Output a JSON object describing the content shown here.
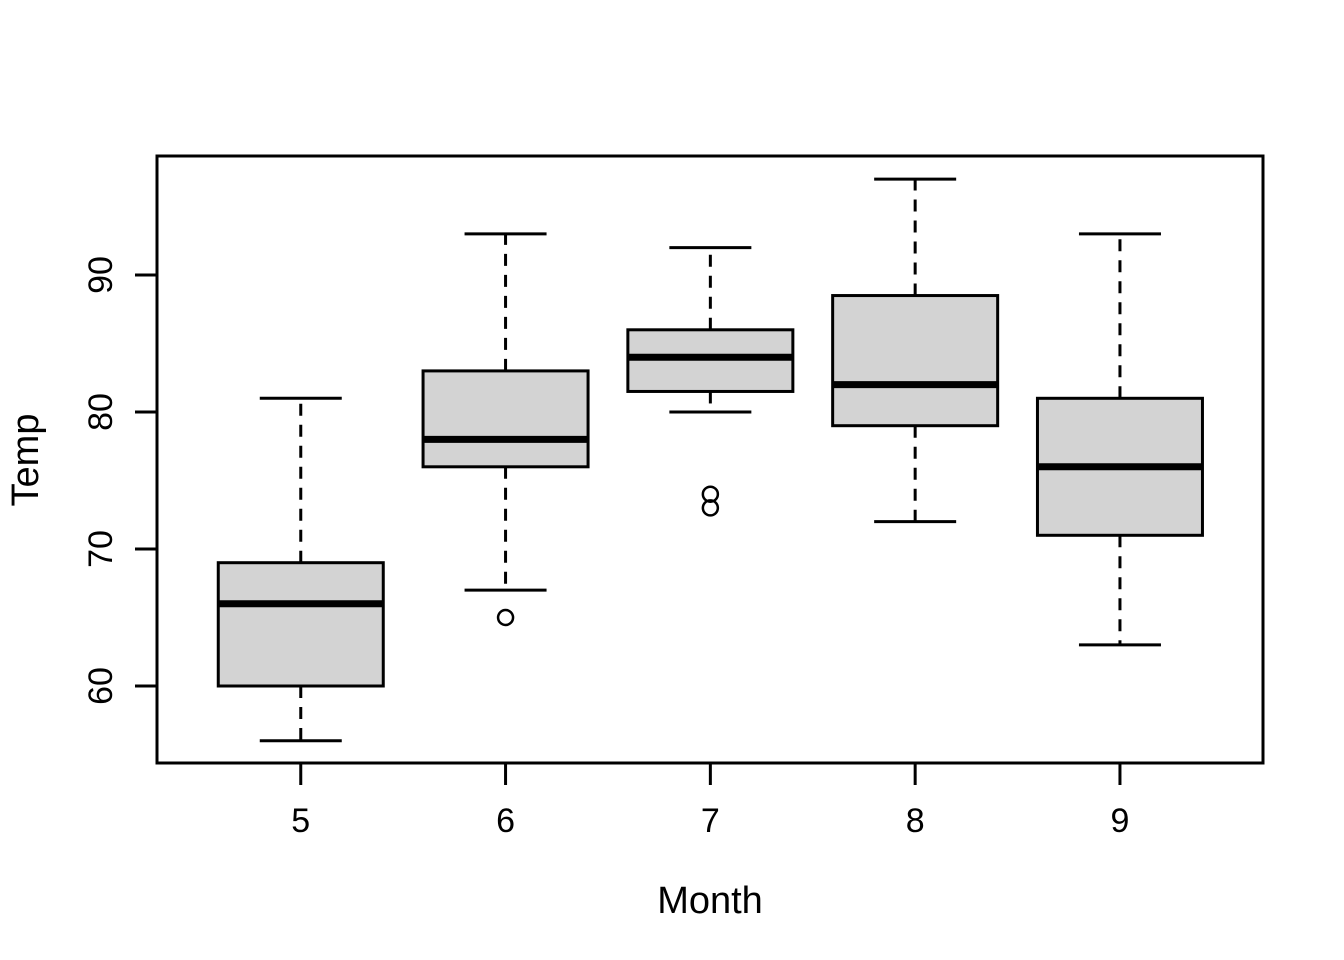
{
  "chart_data": {
    "type": "boxplot",
    "title": "",
    "xlabel": "Month",
    "ylabel": "Temp",
    "categories": [
      "5",
      "6",
      "7",
      "8",
      "9"
    ],
    "y_ticks": [
      60,
      70,
      80,
      90
    ],
    "ylim": [
      54.4,
      98.7
    ],
    "xlim": [
      0.3,
      5.7
    ],
    "grid": false,
    "legend": "none",
    "colors": {
      "box_fill": "#d3d3d3",
      "line": "#000000",
      "background": "#ffffff"
    },
    "boxes": [
      {
        "category": "5",
        "whisker_low": 56,
        "q1": 60,
        "median": 66,
        "q3": 69,
        "whisker_high": 81,
        "outliers": []
      },
      {
        "category": "6",
        "whisker_low": 67,
        "q1": 76,
        "median": 78,
        "q3": 83,
        "whisker_high": 93,
        "outliers": [
          65
        ]
      },
      {
        "category": "7",
        "whisker_low": 80,
        "q1": 81.5,
        "median": 84,
        "q3": 86,
        "whisker_high": 92,
        "outliers": [
          74,
          73
        ]
      },
      {
        "category": "8",
        "whisker_low": 72,
        "q1": 79,
        "median": 82,
        "q3": 88.5,
        "whisker_high": 97,
        "outliers": []
      },
      {
        "category": "9",
        "whisker_low": 63,
        "q1": 71,
        "median": 76,
        "q3": 81,
        "whisker_high": 93,
        "outliers": []
      }
    ]
  }
}
